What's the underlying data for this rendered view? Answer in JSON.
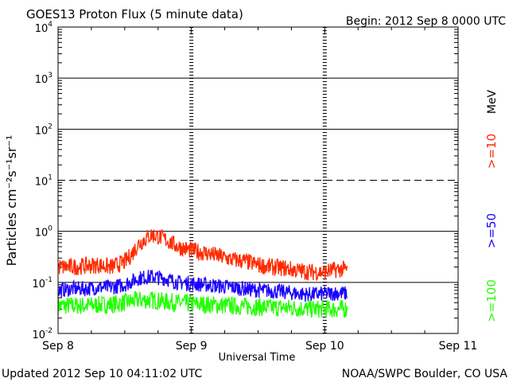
{
  "chart_data": {
    "type": "line",
    "title": "GOES13 Proton Flux (5 minute data)",
    "begin_label": "Begin: 2012 Sep 8 0000 UTC",
    "ylabel": "Particles cm⁻²s⁻¹sr⁻¹",
    "xlabel": "Universal Time",
    "y_scale": "log",
    "ylim": [
      0.01,
      10000
    ],
    "y_ticks": [
      {
        "base": "10",
        "exp": "-2",
        "value": 0.01
      },
      {
        "base": "10",
        "exp": "-1",
        "value": 0.1
      },
      {
        "base": "10",
        "exp": "0",
        "value": 1
      },
      {
        "base": "10",
        "exp": "1",
        "value": 10
      },
      {
        "base": "10",
        "exp": "2",
        "value": 100
      },
      {
        "base": "10",
        "exp": "3",
        "value": 1000
      },
      {
        "base": "10",
        "exp": "4",
        "value": 10000
      }
    ],
    "xlim_days": [
      0,
      3
    ],
    "x_ticks": [
      {
        "label": "Sep 8",
        "day": 0
      },
      {
        "label": "Sep 9",
        "day": 1
      },
      {
        "label": "Sep 10",
        "day": 2
      },
      {
        "label": "Sep 11",
        "day": 3
      }
    ],
    "threshold_line": 10,
    "grid": true,
    "legend_unit": "MeV",
    "series": [
      {
        "name": ">=10",
        "color": "#ff2a00",
        "x_days": [
          0.0,
          0.1,
          0.2,
          0.3,
          0.4,
          0.5,
          0.55,
          0.6,
          0.65,
          0.7,
          0.75,
          0.8,
          0.9,
          1.0,
          1.1,
          1.2,
          1.3,
          1.4,
          1.5,
          1.6,
          1.7,
          1.8,
          1.9,
          2.0,
          2.05,
          2.1,
          2.17
        ],
        "values": [
          0.2,
          0.2,
          0.21,
          0.22,
          0.2,
          0.25,
          0.35,
          0.55,
          0.7,
          0.85,
          0.8,
          0.7,
          0.5,
          0.42,
          0.38,
          0.33,
          0.28,
          0.26,
          0.22,
          0.2,
          0.19,
          0.17,
          0.16,
          0.16,
          0.17,
          0.18,
          0.18
        ]
      },
      {
        "name": ">=50",
        "color": "#1a00ff",
        "x_days": [
          0.0,
          0.1,
          0.2,
          0.3,
          0.4,
          0.5,
          0.6,
          0.7,
          0.8,
          0.9,
          1.0,
          1.1,
          1.2,
          1.3,
          1.4,
          1.5,
          1.6,
          1.7,
          1.8,
          1.9,
          2.0,
          2.1,
          2.17
        ],
        "values": [
          0.07,
          0.075,
          0.075,
          0.08,
          0.08,
          0.09,
          0.12,
          0.13,
          0.12,
          0.1,
          0.095,
          0.09,
          0.085,
          0.08,
          0.075,
          0.07,
          0.068,
          0.065,
          0.06,
          0.058,
          0.06,
          0.062,
          0.06
        ]
      },
      {
        "name": ">=100",
        "color": "#22ff00",
        "x_days": [
          0.0,
          0.1,
          0.2,
          0.3,
          0.4,
          0.5,
          0.6,
          0.7,
          0.8,
          0.9,
          1.0,
          1.1,
          1.2,
          1.3,
          1.4,
          1.5,
          1.6,
          1.7,
          1.8,
          1.9,
          2.0,
          2.1,
          2.17
        ],
        "values": [
          0.035,
          0.035,
          0.035,
          0.036,
          0.037,
          0.04,
          0.045,
          0.045,
          0.042,
          0.04,
          0.038,
          0.037,
          0.036,
          0.035,
          0.034,
          0.033,
          0.032,
          0.032,
          0.031,
          0.03,
          0.03,
          0.03,
          0.03
        ]
      }
    ]
  },
  "footer": {
    "updated": "Updated 2012 Sep 10 04:11:02 UTC",
    "source": "NOAA/SWPC Boulder, CO USA"
  }
}
